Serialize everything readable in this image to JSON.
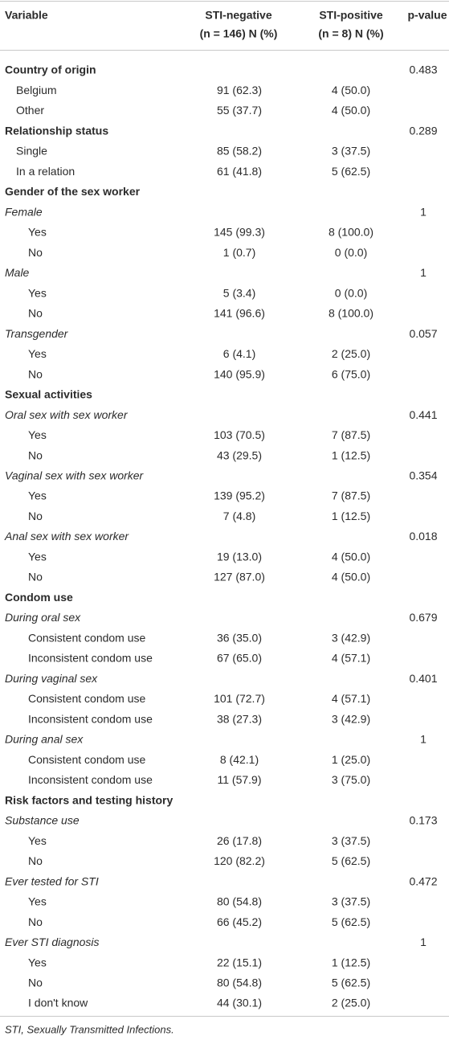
{
  "header": {
    "variable": "Variable",
    "negative": [
      "STI-negative",
      "(n = 146) N (%)"
    ],
    "positive": [
      "STI-positive",
      "(n = 8) N (%)"
    ],
    "p": "p-value"
  },
  "table": {
    "rows": [
      {
        "kind": "section",
        "variable": "Country of origin",
        "p": "0.483"
      },
      {
        "kind": "item",
        "variable": "Belgium",
        "negative": "91 (62.3)",
        "positive": "4 (50.0)"
      },
      {
        "kind": "item",
        "variable": "Other",
        "negative": "55 (37.7)",
        "positive": "4 (50.0)"
      },
      {
        "kind": "section",
        "variable": "Relationship status",
        "p": "0.289"
      },
      {
        "kind": "item",
        "variable": "Single",
        "negative": "85 (58.2)",
        "positive": "3 (37.5)"
      },
      {
        "kind": "item",
        "variable": "In a relation",
        "negative": "61 (41.8)",
        "positive": "5 (62.5)"
      },
      {
        "kind": "section",
        "variable": "Gender of the sex worker"
      },
      {
        "kind": "subgroup",
        "variable": "Female",
        "p": "1"
      },
      {
        "kind": "item",
        "variable": "Yes",
        "negative": "145 (99.3)",
        "positive": "8 (100.0)"
      },
      {
        "kind": "item",
        "variable": "No",
        "negative": "1 (0.7)",
        "positive": "0 (0.0)"
      },
      {
        "kind": "subgroup",
        "variable": "Male",
        "p": "1"
      },
      {
        "kind": "item",
        "variable": "Yes",
        "negative": "5 (3.4)",
        "positive": "0 (0.0)"
      },
      {
        "kind": "item",
        "variable": "No",
        "negative": "141 (96.6)",
        "positive": "8 (100.0)"
      },
      {
        "kind": "subgroup",
        "variable": "Transgender",
        "p": "0.057"
      },
      {
        "kind": "item",
        "variable": "Yes",
        "negative": "6 (4.1)",
        "positive": "2 (25.0)"
      },
      {
        "kind": "item",
        "variable": "No",
        "negative": "140 (95.9)",
        "positive": "6 (75.0)"
      },
      {
        "kind": "section",
        "variable": "Sexual activities"
      },
      {
        "kind": "subgroup",
        "variable": "Oral sex with sex worker",
        "p": "0.441"
      },
      {
        "kind": "item",
        "variable": "Yes",
        "negative": "103 (70.5)",
        "positive": "7 (87.5)"
      },
      {
        "kind": "item",
        "variable": "No",
        "negative": "43 (29.5)",
        "positive": "1 (12.5)"
      },
      {
        "kind": "subgroup",
        "variable": "Vaginal sex with sex worker",
        "p": "0.354"
      },
      {
        "kind": "item",
        "variable": "Yes",
        "negative": "139 (95.2)",
        "positive": "7 (87.5)"
      },
      {
        "kind": "item",
        "variable": "No",
        "negative": "7 (4.8)",
        "positive": "1 (12.5)"
      },
      {
        "kind": "subgroup",
        "variable": "Anal sex with sex worker",
        "p": "0.018"
      },
      {
        "kind": "item",
        "variable": "Yes",
        "negative": "19 (13.0)",
        "positive": "4 (50.0)"
      },
      {
        "kind": "item",
        "variable": "No",
        "negative": "127 (87.0)",
        "positive": "4 (50.0)"
      },
      {
        "kind": "section",
        "variable": "Condom use"
      },
      {
        "kind": "subgroup",
        "variable": "During oral sex",
        "p": "0.679"
      },
      {
        "kind": "item",
        "variable": "Consistent condom use",
        "negative": "36 (35.0)",
        "positive": "3 (42.9)"
      },
      {
        "kind": "item",
        "variable": "Inconsistent condom use",
        "negative": "67 (65.0)",
        "positive": "4 (57.1)"
      },
      {
        "kind": "subgroup",
        "variable": "During vaginal sex",
        "p": "0.401"
      },
      {
        "kind": "item",
        "variable": "Consistent condom use",
        "negative": "101 (72.7)",
        "positive": "4 (57.1)"
      },
      {
        "kind": "item",
        "variable": "Inconsistent condom use",
        "negative": "38 (27.3)",
        "positive": "3 (42.9)"
      },
      {
        "kind": "subgroup",
        "variable": "During anal sex",
        "p": "1"
      },
      {
        "kind": "item",
        "variable": "Consistent condom use",
        "negative": "8 (42.1)",
        "positive": "1 (25.0)"
      },
      {
        "kind": "item",
        "variable": "Inconsistent condom use",
        "negative": "11 (57.9)",
        "positive": "3 (75.0)"
      },
      {
        "kind": "section",
        "variable": "Risk factors and testing history"
      },
      {
        "kind": "subgroup",
        "variable": "Substance use",
        "p": "0.173"
      },
      {
        "kind": "item",
        "variable": "Yes",
        "negative": "26 (17.8)",
        "positive": "3 (37.5)"
      },
      {
        "kind": "item",
        "variable": "No",
        "negative": "120 (82.2)",
        "positive": "5 (62.5)"
      },
      {
        "kind": "subgroup",
        "variable": "Ever tested for STI",
        "p": "0.472"
      },
      {
        "kind": "item",
        "variable": "Yes",
        "negative": "80 (54.8)",
        "positive": "3 (37.5)"
      },
      {
        "kind": "item",
        "variable": "No",
        "negative": "66 (45.2)",
        "positive": "5 (62.5)"
      },
      {
        "kind": "subgroup",
        "variable": "Ever STI diagnosis",
        "p": "1"
      },
      {
        "kind": "item",
        "variable": "Yes",
        "negative": "22 (15.1)",
        "positive": "1 (12.5)"
      },
      {
        "kind": "item",
        "variable": "No",
        "negative": "80 (54.8)",
        "positive": "5 (62.5)"
      },
      {
        "kind": "item",
        "variable": "I don't know",
        "negative": "44 (30.1)",
        "positive": "2 (25.0)"
      }
    ]
  },
  "footnote": "STI, Sexually Transmitted Infections."
}
